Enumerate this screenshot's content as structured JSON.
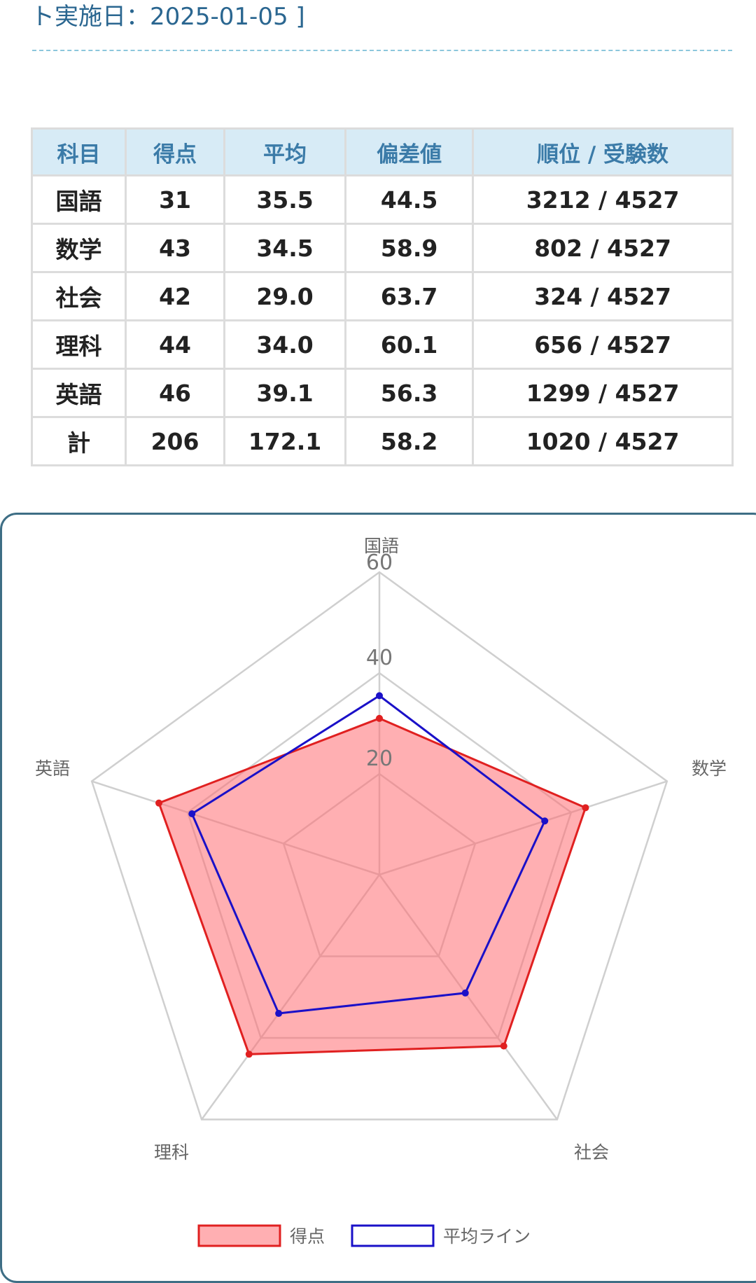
{
  "header": {
    "title": "ト実施日：2025-01-05 ]"
  },
  "table": {
    "columns": [
      "科目",
      "得点",
      "平均",
      "偏差値",
      "順位 / 受験数"
    ],
    "rows": [
      [
        "国語",
        "31",
        "35.5",
        "44.5",
        "3212 / 4527"
      ],
      [
        "数学",
        "43",
        "34.5",
        "58.9",
        "802 / 4527"
      ],
      [
        "社会",
        "42",
        "29.0",
        "63.7",
        "324 / 4527"
      ],
      [
        "理科",
        "44",
        "34.0",
        "60.1",
        "656 / 4527"
      ],
      [
        "英語",
        "46",
        "39.1",
        "56.3",
        "1299 / 4527"
      ],
      [
        "計",
        "206",
        "172.1",
        "58.2",
        "1020 / 4527"
      ]
    ]
  },
  "chart_data": {
    "type": "radar",
    "categories": [
      "国語",
      "数学",
      "社会",
      "理科",
      "英語"
    ],
    "series": [
      {
        "name": "得点",
        "values": [
          31,
          43,
          42,
          44,
          46
        ],
        "color": "#e02020",
        "fill": "rgba(255,110,115,0.55)"
      },
      {
        "name": "平均ライン",
        "values": [
          35.5,
          34.5,
          29.0,
          34.0,
          39.1
        ],
        "color": "#1a10c8",
        "fill": "none"
      }
    ],
    "rlim": [
      0,
      60
    ],
    "ticks": [
      "20",
      "40",
      "60"
    ],
    "grid": true,
    "legend": "bottom"
  }
}
